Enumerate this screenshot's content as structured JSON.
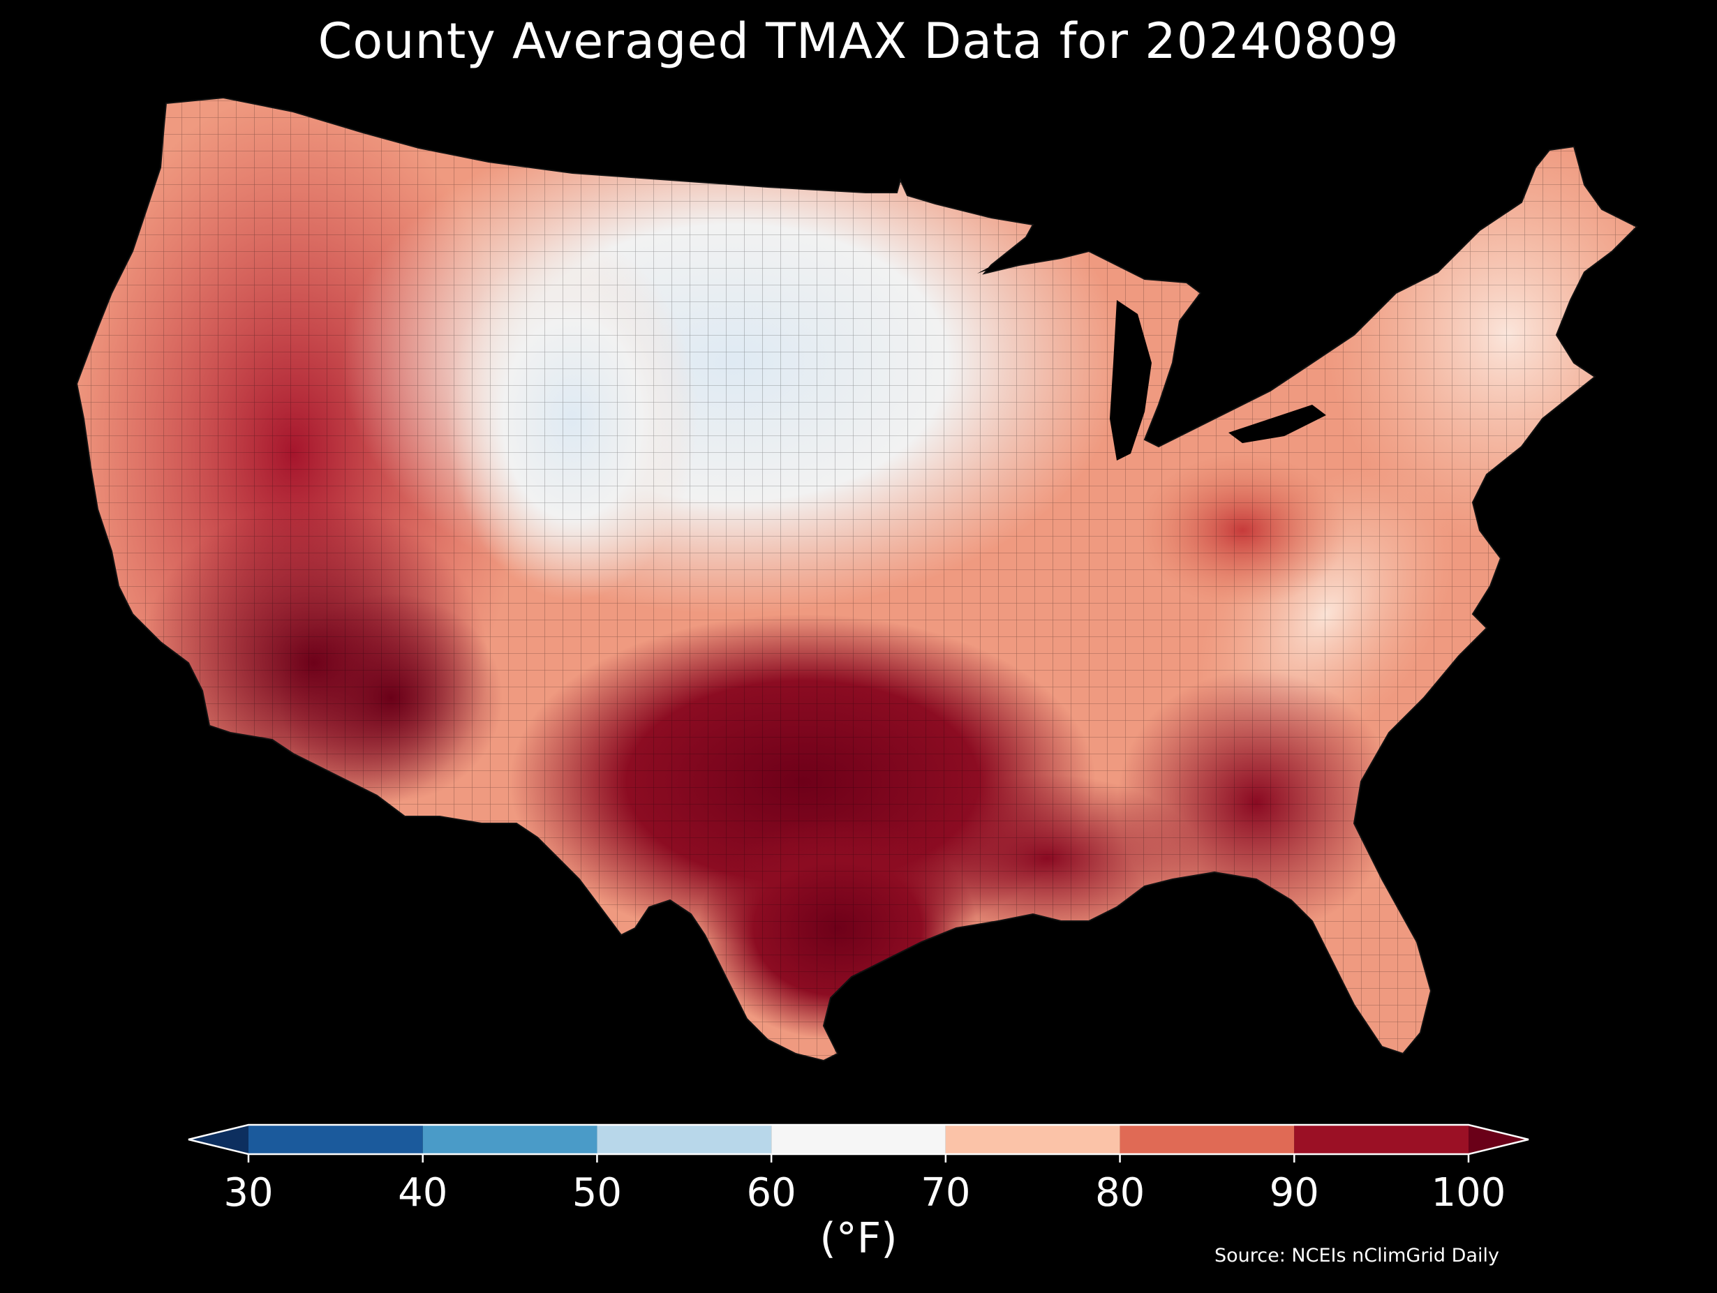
{
  "title": "County Averaged TMAX Data for 20240809",
  "colorbar": {
    "label": "(°F)",
    "ticks": [
      "30",
      "40",
      "50",
      "60",
      "70",
      "80",
      "90",
      "100"
    ],
    "bins": [
      {
        "from": 30,
        "to": 40,
        "color": "#1b5a9c"
      },
      {
        "from": 40,
        "to": 50,
        "color": "#4a9bc8"
      },
      {
        "from": 50,
        "to": 60,
        "color": "#b8d7ea"
      },
      {
        "from": 60,
        "to": 70,
        "color": "#f6f6f6"
      },
      {
        "from": 70,
        "to": 80,
        "color": "#fbc3a8"
      },
      {
        "from": 80,
        "to": 90,
        "color": "#e06a55"
      },
      {
        "from": 90,
        "to": 100,
        "color": "#9b1025"
      }
    ],
    "under_color": "#0d2f5f",
    "over_color": "#6a0018",
    "extend": "both"
  },
  "source": "Source: NCEIs nClimGrid Daily",
  "background_color": "#000000"
}
